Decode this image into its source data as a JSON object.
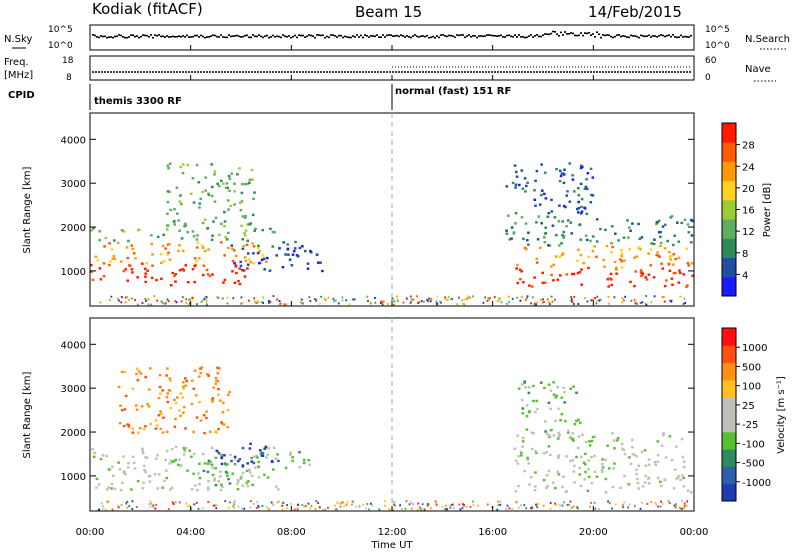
{
  "header": {
    "station": "Kodiak (fitACF)",
    "beam": "Beam 15",
    "date": "14/Feb/2015"
  },
  "top_panel": {
    "left_label": "N.Sky",
    "left_ticks": [
      "10^5",
      "10^0"
    ],
    "right_label": "N.Search",
    "right_ticks": [
      "10^5",
      "10^0"
    ]
  },
  "freq_panel": {
    "left_label_line1": "Freq.",
    "left_label_line2": "[MHz]",
    "left_ticks": [
      "18",
      "8"
    ],
    "right_label": "Nave",
    "right_ticks": [
      "60",
      "0"
    ]
  },
  "cpid": {
    "label": "CPID",
    "mode1": "themis 3300 RF",
    "mode2": "normal (fast) 151 RF"
  },
  "power_panel": {
    "ylabel": "Slant Range [km]",
    "colorbar_label": "Power [dB]",
    "colorbar_ticks": [
      "28",
      "24",
      "20",
      "16",
      "12",
      "8",
      "4"
    ],
    "colors": [
      "#1a1aff",
      "#1e4fa0",
      "#2e8b57",
      "#5fae5f",
      "#9acd32",
      "#ffd21f",
      "#ff9a00",
      "#ff5a00",
      "#ff1a00"
    ]
  },
  "velocity_panel": {
    "ylabel": "Slant Range [km]",
    "colorbar_label": "Velocity [m s⁻¹]",
    "colorbar_ticks": [
      "1000",
      "500",
      "100",
      "25",
      "-25",
      "-100",
      "-500",
      "-1000"
    ],
    "colors": [
      "#1e3cb0",
      "#2e5faf",
      "#2f8a5f",
      "#55c02f",
      "#c0c0b8",
      "#c0c0b8",
      "#ffc020",
      "#ff9010",
      "#ff5010",
      "#ff1010"
    ]
  },
  "x_axis": {
    "label": "Time UT",
    "ticks": [
      "00:00",
      "04:00",
      "08:00",
      "12:00",
      "16:00",
      "20:00",
      "00:00"
    ]
  },
  "chart_data": {
    "type": "heatmap",
    "title": "Kodiak (fitACF)  Beam 15  14/Feb/2015",
    "xlabel": "Time UT",
    "ylabel": "Slant Range [km]",
    "x_range_hours": [
      0,
      24
    ],
    "y_range_km": [
      200,
      4600
    ],
    "y_ticks": [
      1000,
      2000,
      3000,
      4000
    ],
    "power_colorbar": [
      4,
      8,
      12,
      16,
      20,
      24,
      28
    ],
    "velocity_colorbar": [
      -1000,
      -500,
      -100,
      -25,
      25,
      100,
      500,
      1000
    ],
    "cpid_change_hour": 12,
    "power_regions": [
      {
        "t0": 0.0,
        "t1": 6.5,
        "r0": 700,
        "r1": 1200,
        "level": 8
      },
      {
        "t0": 0.0,
        "t1": 7.0,
        "r0": 1200,
        "r1": 1700,
        "level": 6
      },
      {
        "t0": 0.0,
        "t1": 7.5,
        "r0": 1700,
        "r1": 2000,
        "level": 3
      },
      {
        "t0": 5.5,
        "t1": 9.2,
        "r0": 1000,
        "r1": 1700,
        "level": 1
      },
      {
        "t0": 3.0,
        "t1": 6.5,
        "r0": 2000,
        "r1": 3500,
        "level": 3
      },
      {
        "t0": 16.8,
        "t1": 24.0,
        "r0": 650,
        "r1": 1100,
        "level": 8
      },
      {
        "t0": 16.8,
        "t1": 24.0,
        "r0": 1100,
        "r1": 1600,
        "level": 6
      },
      {
        "t0": 16.5,
        "t1": 24.0,
        "r0": 1600,
        "r1": 2300,
        "level": 2
      },
      {
        "t0": 16.5,
        "t1": 20.0,
        "r0": 2300,
        "r1": 3500,
        "level": 1
      }
    ],
    "velocity_regions": [
      {
        "t0": 0.0,
        "t1": 7.5,
        "r0": 700,
        "r1": 1700,
        "level": 4
      },
      {
        "t0": 5.0,
        "t1": 7.5,
        "r0": 1200,
        "r1": 1800,
        "level": 0
      },
      {
        "t0": 6.5,
        "t1": 8.8,
        "r0": 1200,
        "r1": 1600,
        "level": 3
      },
      {
        "t0": 4.0,
        "t1": 6.5,
        "r0": 800,
        "r1": 1400,
        "level": 3
      },
      {
        "t0": 1.0,
        "t1": 5.5,
        "r0": 2000,
        "r1": 3500,
        "level": 7
      },
      {
        "t0": 16.8,
        "t1": 24.0,
        "r0": 650,
        "r1": 2000,
        "level": 4
      },
      {
        "t0": 17.0,
        "t1": 19.5,
        "r0": 2000,
        "r1": 3200,
        "level": 3
      }
    ]
  }
}
